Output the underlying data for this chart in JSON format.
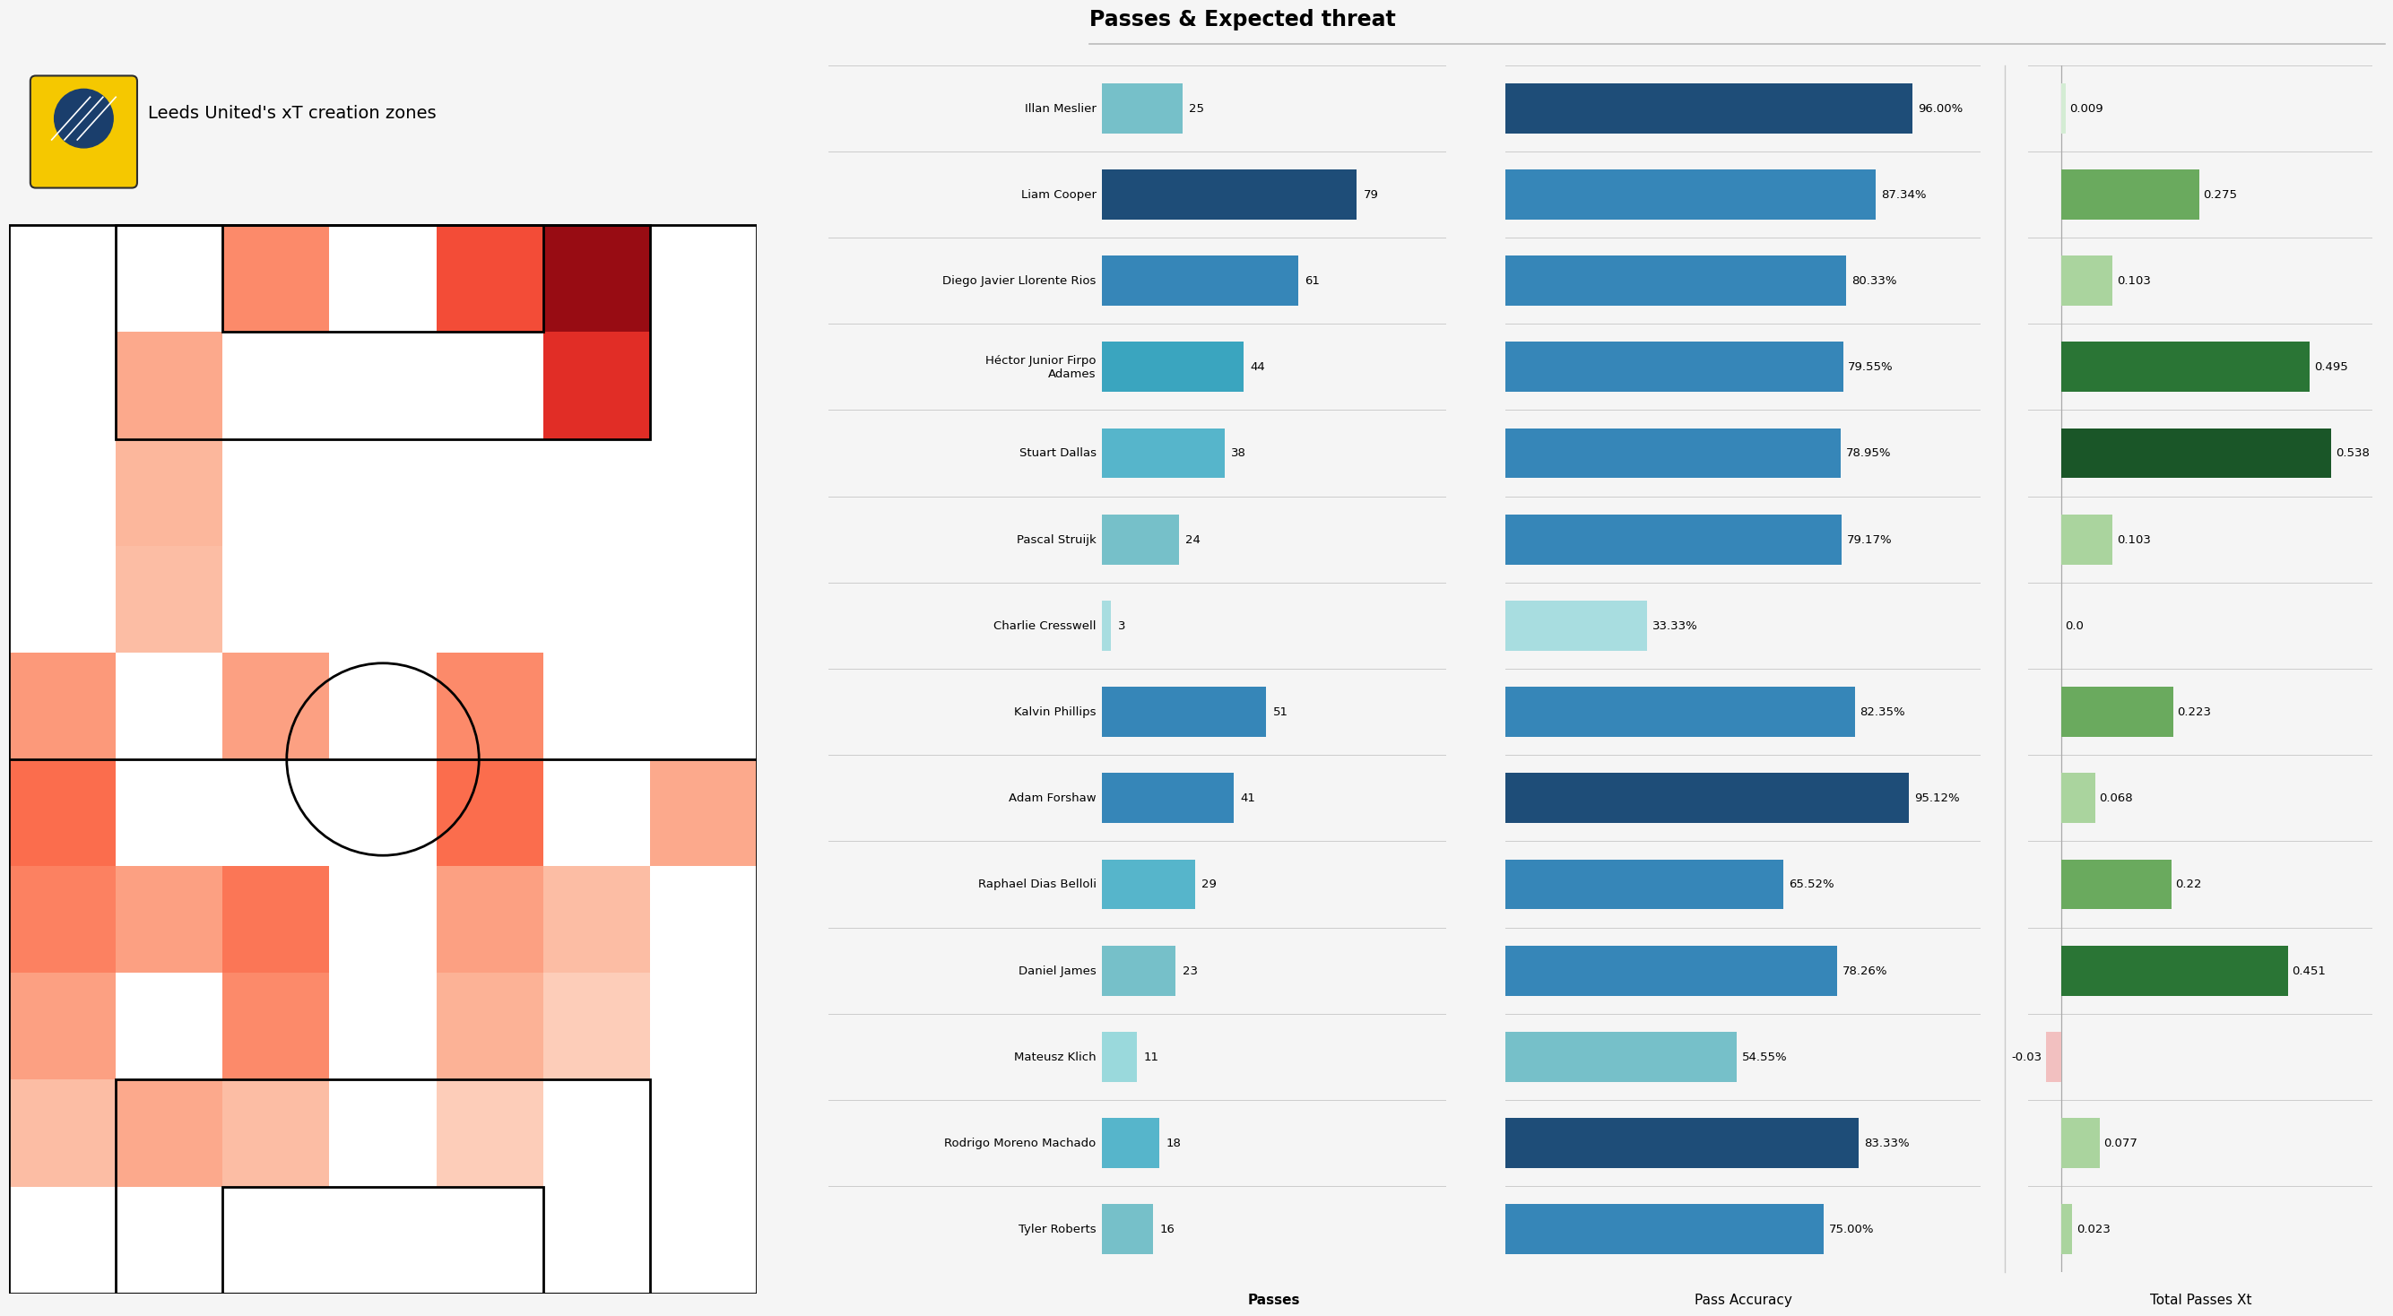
{
  "title_heatmap": "Leeds United's xT creation zones",
  "title_bars": "Passes & Expected threat",
  "background_color": "#f5f5f5",
  "players": [
    "Illan Meslier",
    "Liam Cooper",
    "Diego Javier Llorente Rios",
    "Héctor Junior Firpo\nAdames",
    "Stuart Dallas",
    "Pascal Struijk",
    "Charlie Cresswell",
    "Kalvin Phillips",
    "Adam Forshaw",
    "Raphael Dias Belloli",
    "Daniel James",
    "Mateusz Klich",
    "Rodrigo Moreno Machado",
    "Tyler Roberts"
  ],
  "passes": [
    25,
    79,
    61,
    44,
    38,
    24,
    3,
    51,
    41,
    29,
    23,
    11,
    18,
    16
  ],
  "pass_accuracy": [
    96.0,
    87.34,
    80.33,
    79.55,
    78.95,
    79.17,
    33.33,
    82.35,
    95.12,
    65.52,
    78.26,
    54.55,
    83.33,
    75.0
  ],
  "xT": [
    0.009,
    0.275,
    0.103,
    0.495,
    0.538,
    0.103,
    0.0,
    0.223,
    0.068,
    0.22,
    0.451,
    -0.03,
    0.077,
    0.023
  ],
  "passes_colors": [
    "#76c0c9",
    "#1e4d78",
    "#3686b8",
    "#3aa5bf",
    "#56b5cb",
    "#76c0c9",
    "#a8dde0",
    "#3686b8",
    "#3686b8",
    "#56b5cb",
    "#76c0c9",
    "#9ad9dc",
    "#56b5cb",
    "#76c0c9"
  ],
  "accuracy_colors": [
    "#1e4d78",
    "#3686b8",
    "#3686b8",
    "#3686b8",
    "#3686b8",
    "#3686b8",
    "#a8dde0",
    "#3686b8",
    "#1e4d78",
    "#3686b8",
    "#3686b8",
    "#76c0c9",
    "#1e4d78",
    "#3686b8"
  ],
  "xT_colors": [
    "#d4ecd4",
    "#6aaa5e",
    "#aad49e",
    "#2a7535",
    "#1a5628",
    "#aad49e",
    "#ffffff",
    "#6aaa5e",
    "#aad49e",
    "#6aaa5e",
    "#2a7535",
    "#f2c0c0",
    "#aad49e",
    "#aad49e"
  ],
  "heatmap_grid": {
    "rows": 10,
    "cols": 7,
    "values": [
      [
        0.0,
        0.0,
        0.35,
        0.0,
        0.55,
        0.9,
        0.0
      ],
      [
        0.0,
        0.25,
        0.0,
        0.0,
        0.0,
        0.65,
        0.0
      ],
      [
        0.0,
        0.2,
        0.0,
        0.0,
        0.0,
        0.0,
        0.0
      ],
      [
        0.0,
        0.18,
        0.0,
        0.0,
        0.0,
        0.0,
        0.0
      ],
      [
        0.3,
        0.0,
        0.28,
        0.0,
        0.35,
        0.0,
        0.0
      ],
      [
        0.45,
        0.0,
        0.0,
        0.0,
        0.45,
        0.0,
        0.25
      ],
      [
        0.38,
        0.28,
        0.42,
        0.0,
        0.28,
        0.18,
        0.0
      ],
      [
        0.28,
        0.0,
        0.35,
        0.0,
        0.22,
        0.12,
        0.0
      ],
      [
        0.18,
        0.25,
        0.18,
        0.0,
        0.12,
        0.0,
        0.0
      ],
      [
        0.0,
        0.0,
        0.0,
        0.0,
        0.0,
        0.0,
        0.0
      ]
    ]
  }
}
